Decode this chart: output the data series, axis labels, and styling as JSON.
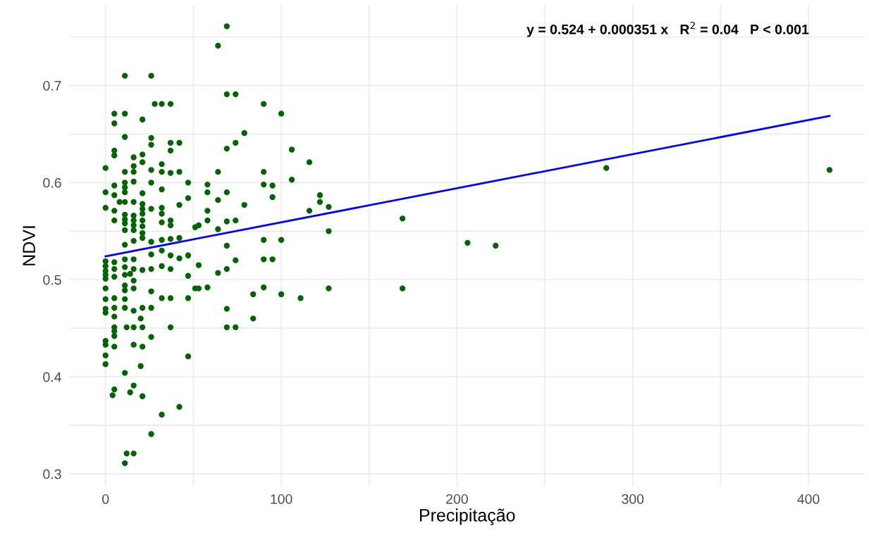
{
  "chart_data": {
    "type": "scatter",
    "xlabel": "Precipitação",
    "ylabel": "NDVI",
    "annotations": [
      "y = 0.524 + 0.000351 x   R$^{2}$ = 0.04   P < 0.001"
    ],
    "xlim": [
      -20.5,
      432
    ],
    "ylim": [
      0.2875,
      0.7825
    ],
    "xticks": [
      0,
      {
        "value": 50,
        "label": null
      },
      100,
      {
        "value": 150,
        "label": null
      },
      200,
      {
        "value": 250,
        "label": null
      },
      300,
      {
        "value": 350,
        "label": null
      },
      400
    ],
    "yticks": [
      0.3,
      {
        "value": 0.35,
        "label": null
      },
      0.4,
      {
        "value": 0.45,
        "label": null
      },
      0.5,
      {
        "value": 0.55,
        "label": null
      },
      0.6,
      {
        "value": 0.65,
        "label": null
      },
      0.7,
      {
        "value": 0.75,
        "label": null
      }
    ],
    "grid": true,
    "series": [
      {
        "color": "#006400",
        "marker": "circle",
        "x": [
          0,
          0,
          0,
          0,
          0,
          0,
          0,
          0,
          0,
          0,
          0,
          0,
          0,
          0,
          0,
          0,
          5,
          5,
          5,
          5,
          5,
          5,
          5,
          5,
          5,
          5,
          5,
          5,
          5,
          5,
          5,
          5,
          5,
          5,
          5,
          4,
          8,
          11,
          11,
          11,
          11,
          11,
          11,
          11,
          11,
          11,
          11,
          11,
          11,
          11,
          11,
          11,
          11,
          11,
          11,
          11,
          11,
          11,
          11,
          12,
          12,
          16,
          16,
          16,
          16,
          16,
          16,
          16,
          16,
          16,
          16,
          16,
          16,
          16,
          16,
          16,
          16,
          16,
          16,
          16,
          14,
          14,
          20,
          20,
          21,
          21,
          21,
          21,
          21,
          21,
          21,
          21,
          21,
          21,
          21,
          21,
          21,
          21,
          21,
          21,
          26,
          26,
          26,
          26,
          26,
          26,
          26,
          26,
          26,
          26,
          26,
          26,
          26,
          28,
          32,
          32,
          32,
          32,
          32,
          32,
          32,
          32,
          32,
          32,
          32,
          32,
          37,
          37,
          37,
          37,
          37,
          37,
          37,
          37,
          37,
          37,
          37,
          42,
          42,
          42,
          42,
          42,
          42,
          47,
          47,
          47,
          47,
          47,
          47,
          51,
          51,
          53,
          53,
          53,
          58,
          58,
          58,
          58,
          58,
          64,
          64,
          64,
          64,
          64,
          69,
          69,
          69,
          69,
          69,
          69,
          69,
          69,
          69,
          74,
          74,
          74,
          74,
          74,
          79,
          79,
          84,
          84,
          90,
          90,
          90,
          90,
          90,
          90,
          95,
          95,
          95,
          100,
          100,
          100,
          106,
          106,
          111,
          116,
          116,
          122,
          122,
          127,
          127,
          127,
          169,
          169,
          206,
          222,
          285,
          412
        ],
        "values": [
          0.615,
          0.59,
          0.574,
          0.519,
          0.514,
          0.509,
          0.505,
          0.501,
          0.491,
          0.48,
          0.47,
          0.466,
          0.437,
          0.433,
          0.422,
          0.413,
          0.671,
          0.661,
          0.633,
          0.628,
          0.597,
          0.587,
          0.571,
          0.561,
          0.518,
          0.511,
          0.503,
          0.481,
          0.471,
          0.462,
          0.451,
          0.447,
          0.442,
          0.431,
          0.387,
          0.381,
          0.58,
          0.71,
          0.671,
          0.647,
          0.611,
          0.6,
          0.595,
          0.59,
          0.58,
          0.567,
          0.562,
          0.558,
          0.551,
          0.536,
          0.521,
          0.513,
          0.505,
          0.494,
          0.489,
          0.48,
          0.471,
          0.404,
          0.311,
          0.451,
          0.321,
          0.626,
          0.617,
          0.611,
          0.601,
          0.58,
          0.566,
          0.561,
          0.556,
          0.551,
          0.54,
          0.521,
          0.511,
          0.499,
          0.491,
          0.468,
          0.451,
          0.433,
          0.391,
          0.321,
          0.506,
          0.384,
          0.46,
          0.411,
          0.665,
          0.629,
          0.621,
          0.589,
          0.578,
          0.573,
          0.568,
          0.561,
          0.555,
          0.548,
          0.543,
          0.51,
          0.471,
          0.451,
          0.431,
          0.38,
          0.71,
          0.646,
          0.639,
          0.613,
          0.6,
          0.573,
          0.539,
          0.526,
          0.511,
          0.488,
          0.471,
          0.441,
          0.341,
          0.681,
          0.681,
          0.619,
          0.611,
          0.593,
          0.574,
          0.568,
          0.559,
          0.541,
          0.53,
          0.514,
          0.481,
          0.361,
          0.681,
          0.641,
          0.633,
          0.61,
          0.561,
          0.556,
          0.542,
          0.525,
          0.511,
          0.481,
          0.451,
          0.641,
          0.611,
          0.577,
          0.543,
          0.522,
          0.369,
          0.6,
          0.584,
          0.525,
          0.504,
          0.481,
          0.421,
          0.554,
          0.491,
          0.556,
          0.515,
          0.491,
          0.598,
          0.59,
          0.571,
          0.561,
          0.492,
          0.741,
          0.611,
          0.582,
          0.552,
          0.507,
          0.761,
          0.691,
          0.635,
          0.59,
          0.56,
          0.535,
          0.511,
          0.47,
          0.451,
          0.691,
          0.641,
          0.561,
          0.52,
          0.451,
          0.651,
          0.577,
          0.485,
          0.46,
          0.681,
          0.611,
          0.598,
          0.541,
          0.521,
          0.492,
          0.597,
          0.585,
          0.521,
          0.671,
          0.541,
          0.485,
          0.634,
          0.603,
          0.481,
          0.621,
          0.571,
          0.587,
          0.58,
          0.575,
          0.55,
          0.491,
          0.563,
          0.491,
          0.538,
          0.535,
          0.615,
          0.613
        ]
      },
      {
        "type": "line",
        "color": "#0000ff",
        "x": [
          0,
          412
        ],
        "values": [
          0.524,
          0.6686
        ]
      }
    ]
  }
}
